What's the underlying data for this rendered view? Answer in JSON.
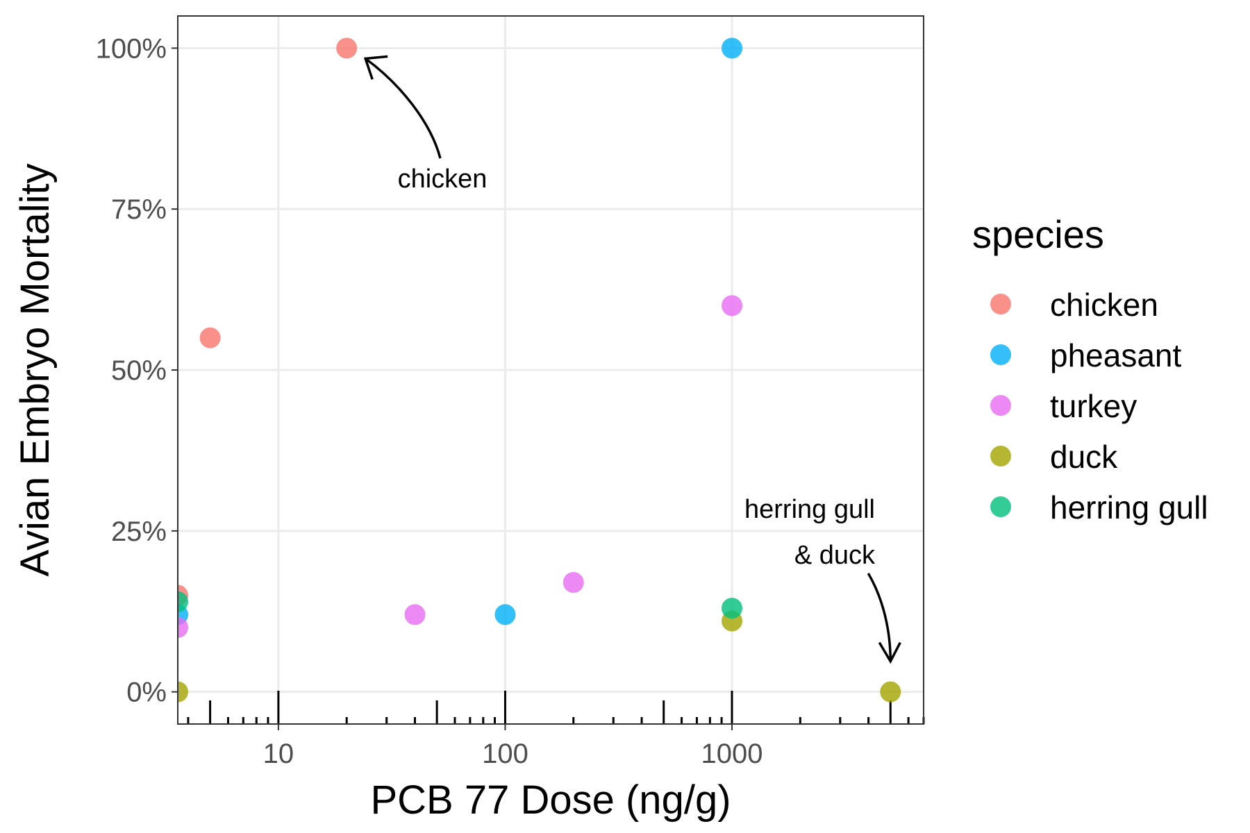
{
  "chart_data": {
    "type": "scatter",
    "xlabel": "PCB 77 Dose (ng/g)",
    "ylabel": "Avian Embryo Mortality",
    "x_scale": "log10",
    "xlim": [
      3.6,
      7000
    ],
    "ylim": [
      -0.05,
      1.05
    ],
    "x_ticks": [
      {
        "value": 10,
        "label": "10"
      },
      {
        "value": 100,
        "label": "100"
      },
      {
        "value": 1000,
        "label": "1000"
      }
    ],
    "y_ticks": [
      {
        "value": 0,
        "label": "0%"
      },
      {
        "value": 0.25,
        "label": "25%"
      },
      {
        "value": 0.5,
        "label": "50%"
      },
      {
        "value": 0.75,
        "label": "75%"
      },
      {
        "value": 1,
        "label": "100%"
      }
    ],
    "grid": true,
    "rug_ticks": true,
    "legend": {
      "title": "species",
      "position": "right"
    },
    "series": [
      {
        "name": "chicken",
        "color": "#F8766D",
        "points": [
          {
            "x": 3.6,
            "y": 0.15
          },
          {
            "x": 5,
            "y": 0.55
          },
          {
            "x": 20,
            "y": 1.0
          }
        ]
      },
      {
        "name": "pheasant",
        "color": "#00B0F6",
        "points": [
          {
            "x": 3.6,
            "y": 0.12
          },
          {
            "x": 100,
            "y": 0.12
          },
          {
            "x": 1000,
            "y": 1.0
          }
        ]
      },
      {
        "name": "turkey",
        "color": "#E76BF3",
        "points": [
          {
            "x": 3.6,
            "y": 0.1
          },
          {
            "x": 40,
            "y": 0.12
          },
          {
            "x": 200,
            "y": 0.17
          },
          {
            "x": 1000,
            "y": 0.6
          }
        ]
      },
      {
        "name": "duck",
        "color": "#A3A500",
        "points": [
          {
            "x": 3.6,
            "y": 0.0
          },
          {
            "x": 1000,
            "y": 0.11
          },
          {
            "x": 5000,
            "y": 0.0
          }
        ]
      },
      {
        "name": "herring gull",
        "color": "#00BF7D",
        "points": [
          {
            "x": 3.6,
            "y": 0.14
          },
          {
            "x": 1000,
            "y": 0.13
          }
        ]
      }
    ],
    "annotations": [
      {
        "lines": [
          "chicken"
        ],
        "points_to": {
          "x": 20,
          "y": 1.0
        }
      },
      {
        "lines": [
          "herring gull",
          "& duck"
        ],
        "points_to": {
          "x": 5000,
          "y": 0.0
        }
      }
    ]
  }
}
